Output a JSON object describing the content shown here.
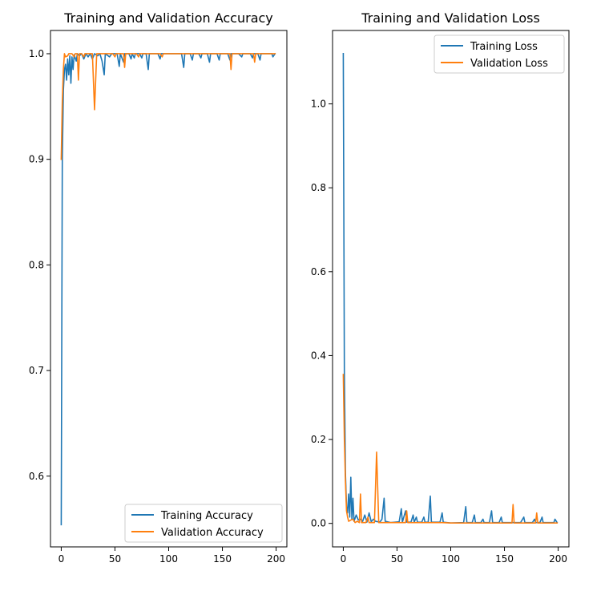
{
  "chart_data": [
    {
      "type": "line",
      "title": "Training and Validation Accuracy",
      "xlabel": "",
      "ylabel": "",
      "xlim": [
        -10,
        210
      ],
      "ylim": [
        0.533,
        1.022
      ],
      "xticks": [
        0,
        50,
        100,
        150,
        200
      ],
      "xtick_labels": [
        "0",
        "50",
        "100",
        "150",
        "200"
      ],
      "yticks": [
        0.6,
        0.7,
        0.8,
        0.9,
        1.0
      ],
      "ytick_labels": [
        "0.6",
        "0.7",
        "0.8",
        "0.9",
        "1.0"
      ],
      "grid": false,
      "legend_position": "lower-right",
      "series": [
        {
          "name": "Training Accuracy",
          "color": "#1f77b4",
          "points": [
            [
              0,
              0.554
            ],
            [
              1,
              0.9
            ],
            [
              2,
              0.965
            ],
            [
              3,
              0.985
            ],
            [
              4,
              0.99
            ],
            [
              5,
              0.975
            ],
            [
              6,
              0.995
            ],
            [
              7,
              0.98
            ],
            [
              8,
              0.998
            ],
            [
              9,
              0.972
            ],
            [
              10,
              0.997
            ],
            [
              11,
              0.985
            ],
            [
              12,
              0.999
            ],
            [
              14,
              0.993
            ],
            [
              15,
              1.0
            ],
            [
              17,
              0.998
            ],
            [
              19,
              1.0
            ],
            [
              21,
              0.995
            ],
            [
              23,
              1.0
            ],
            [
              25,
              0.997
            ],
            [
              27,
              1.0
            ],
            [
              29,
              0.995
            ],
            [
              31,
              1.0
            ],
            [
              34,
              0.998
            ],
            [
              36,
              1.0
            ],
            [
              38,
              0.993
            ],
            [
              40,
              0.98
            ],
            [
              41,
              1.0
            ],
            [
              45,
              0.997
            ],
            [
              47,
              1.0
            ],
            [
              52,
              1.0
            ],
            [
              54,
              0.988
            ],
            [
              55,
              1.0
            ],
            [
              58,
              0.992
            ],
            [
              59,
              1.0
            ],
            [
              63,
              1.0
            ],
            [
              65,
              0.995
            ],
            [
              66,
              1.0
            ],
            [
              68,
              0.996
            ],
            [
              69,
              1.0
            ],
            [
              73,
              1.0
            ],
            [
              75,
              0.996
            ],
            [
              76,
              1.0
            ],
            [
              79,
              1.0
            ],
            [
              81,
              0.985
            ],
            [
              82,
              1.0
            ],
            [
              90,
              1.0
            ],
            [
              92,
              0.995
            ],
            [
              93,
              1.0
            ],
            [
              100,
              1.0
            ],
            [
              112,
              1.0
            ],
            [
              114,
              0.987
            ],
            [
              115,
              1.0
            ],
            [
              120,
              1.0
            ],
            [
              122,
              0.994
            ],
            [
              123,
              1.0
            ],
            [
              128,
              1.0
            ],
            [
              130,
              0.996
            ],
            [
              131,
              1.0
            ],
            [
              136,
              1.0
            ],
            [
              138,
              0.992
            ],
            [
              139,
              1.0
            ],
            [
              145,
              1.0
            ],
            [
              147,
              0.994
            ],
            [
              148,
              1.0
            ],
            [
              155,
              1.0
            ],
            [
              157,
              0.994
            ],
            [
              158,
              1.0
            ],
            [
              165,
              1.0
            ],
            [
              168,
              0.997
            ],
            [
              169,
              1.0
            ],
            [
              176,
              1.0
            ],
            [
              178,
              0.996
            ],
            [
              179,
              1.0
            ],
            [
              183,
              1.0
            ],
            [
              185,
              0.994
            ],
            [
              186,
              1.0
            ],
            [
              196,
              1.0
            ],
            [
              197,
              0.997
            ],
            [
              199,
              1.0
            ]
          ]
        },
        {
          "name": "Validation Accuracy",
          "color": "#ff7f0e",
          "points": [
            [
              0,
              0.9
            ],
            [
              1,
              0.955
            ],
            [
              2,
              0.985
            ],
            [
              3,
              1.0
            ],
            [
              4,
              0.997
            ],
            [
              6,
              0.998
            ],
            [
              7,
              1.0
            ],
            [
              10,
              1.0
            ],
            [
              12,
              0.997
            ],
            [
              13,
              1.0
            ],
            [
              15,
              1.0
            ],
            [
              16,
              0.975
            ],
            [
              17,
              1.0
            ],
            [
              19,
              1.0
            ],
            [
              21,
              0.997
            ],
            [
              22,
              1.0
            ],
            [
              29,
              1.0
            ],
            [
              31,
              0.947
            ],
            [
              33,
              1.0
            ],
            [
              48,
              1.0
            ],
            [
              50,
              0.997
            ],
            [
              51,
              1.0
            ],
            [
              58,
              1.0
            ],
            [
              59,
              0.987
            ],
            [
              60,
              1.0
            ],
            [
              70,
              1.0
            ],
            [
              72,
              0.997
            ],
            [
              73,
              1.0
            ],
            [
              92,
              1.0
            ],
            [
              94,
              0.997
            ],
            [
              95,
              1.0
            ],
            [
              120,
              1.0
            ],
            [
              150,
              1.0
            ],
            [
              157,
              1.0
            ],
            [
              158,
              0.985
            ],
            [
              159,
              1.0
            ],
            [
              170,
              1.0
            ],
            [
              179,
              1.0
            ],
            [
              180,
              0.992
            ],
            [
              181,
              1.0
            ],
            [
              199,
              1.0
            ]
          ]
        }
      ]
    },
    {
      "type": "line",
      "title": "Training and Validation Loss",
      "xlabel": "",
      "ylabel": "",
      "xlim": [
        -10,
        210
      ],
      "ylim": [
        -0.056,
        1.175
      ],
      "xticks": [
        0,
        50,
        100,
        150,
        200
      ],
      "xtick_labels": [
        "0",
        "50",
        "100",
        "150",
        "200"
      ],
      "yticks": [
        0.0,
        0.2,
        0.4,
        0.6,
        0.8,
        1.0
      ],
      "ytick_labels": [
        "0.0",
        "0.2",
        "0.4",
        "0.6",
        "0.8",
        "1.0"
      ],
      "grid": false,
      "legend_position": "upper-right",
      "series": [
        {
          "name": "Training Loss",
          "color": "#1f77b4",
          "points": [
            [
              0,
              1.12
            ],
            [
              1,
              0.36
            ],
            [
              2,
              0.12
            ],
            [
              3,
              0.04
            ],
            [
              4,
              0.025
            ],
            [
              5,
              0.07
            ],
            [
              6,
              0.015
            ],
            [
              7,
              0.11
            ],
            [
              8,
              0.01
            ],
            [
              9,
              0.06
            ],
            [
              10,
              0.005
            ],
            [
              12,
              0.02
            ],
            [
              14,
              0.008
            ],
            [
              16,
              0.01
            ],
            [
              18,
              0.005
            ],
            [
              20,
              0.02
            ],
            [
              22,
              0.003
            ],
            [
              24,
              0.025
            ],
            [
              26,
              0.004
            ],
            [
              28,
              0.01
            ],
            [
              30,
              0.005
            ],
            [
              34,
              0.003
            ],
            [
              36,
              0.01
            ],
            [
              38,
              0.06
            ],
            [
              39,
              0.005
            ],
            [
              44,
              0.002
            ],
            [
              48,
              0.003
            ],
            [
              52,
              0.004
            ],
            [
              54,
              0.035
            ],
            [
              55,
              0.003
            ],
            [
              58,
              0.03
            ],
            [
              59,
              0.003
            ],
            [
              63,
              0.003
            ],
            [
              65,
              0.02
            ],
            [
              66,
              0.003
            ],
            [
              68,
              0.015
            ],
            [
              69,
              0.003
            ],
            [
              73,
              0.003
            ],
            [
              75,
              0.015
            ],
            [
              76,
              0.003
            ],
            [
              79,
              0.003
            ],
            [
              81,
              0.065
            ],
            [
              82,
              0.003
            ],
            [
              90,
              0.003
            ],
            [
              92,
              0.025
            ],
            [
              93,
              0.003
            ],
            [
              100,
              0.001
            ],
            [
              112,
              0.002
            ],
            [
              114,
              0.04
            ],
            [
              115,
              0.002
            ],
            [
              120,
              0.002
            ],
            [
              122,
              0.02
            ],
            [
              123,
              0.002
            ],
            [
              128,
              0.002
            ],
            [
              130,
              0.01
            ],
            [
              131,
              0.002
            ],
            [
              136,
              0.002
            ],
            [
              138,
              0.03
            ],
            [
              139,
              0.002
            ],
            [
              145,
              0.002
            ],
            [
              147,
              0.015
            ],
            [
              148,
              0.002
            ],
            [
              155,
              0.002
            ],
            [
              158,
              0.002
            ],
            [
              165,
              0.002
            ],
            [
              168,
              0.015
            ],
            [
              169,
              0.002
            ],
            [
              176,
              0.002
            ],
            [
              178,
              0.01
            ],
            [
              179,
              0.002
            ],
            [
              183,
              0.002
            ],
            [
              185,
              0.015
            ],
            [
              186,
              0.002
            ],
            [
              196,
              0.002
            ],
            [
              197,
              0.01
            ],
            [
              199,
              0.002
            ]
          ]
        },
        {
          "name": "Validation Loss",
          "color": "#ff7f0e",
          "points": [
            [
              0,
              0.355
            ],
            [
              1,
              0.2
            ],
            [
              2,
              0.1
            ],
            [
              3,
              0.03
            ],
            [
              4,
              0.015
            ],
            [
              5,
              0.005
            ],
            [
              7,
              0.008
            ],
            [
              9,
              0.01
            ],
            [
              11,
              0.002
            ],
            [
              13,
              0.005
            ],
            [
              15,
              0.002
            ],
            [
              16,
              0.07
            ],
            [
              17,
              0.002
            ],
            [
              21,
              0.002
            ],
            [
              23,
              0.015
            ],
            [
              24,
              0.002
            ],
            [
              29,
              0.002
            ],
            [
              31,
              0.17
            ],
            [
              33,
              0.002
            ],
            [
              36,
              0.002
            ],
            [
              48,
              0.002
            ],
            [
              58,
              0.002
            ],
            [
              59,
              0.03
            ],
            [
              60,
              0.002
            ],
            [
              70,
              0.002
            ],
            [
              80,
              0.002
            ],
            [
              92,
              0.002
            ],
            [
              100,
              0.001
            ],
            [
              130,
              0.001
            ],
            [
              150,
              0.001
            ],
            [
              157,
              0.001
            ],
            [
              158,
              0.045
            ],
            [
              159,
              0.001
            ],
            [
              170,
              0.001
            ],
            [
              179,
              0.001
            ],
            [
              180,
              0.025
            ],
            [
              181,
              0.001
            ],
            [
              199,
              0.001
            ]
          ]
        }
      ]
    }
  ]
}
